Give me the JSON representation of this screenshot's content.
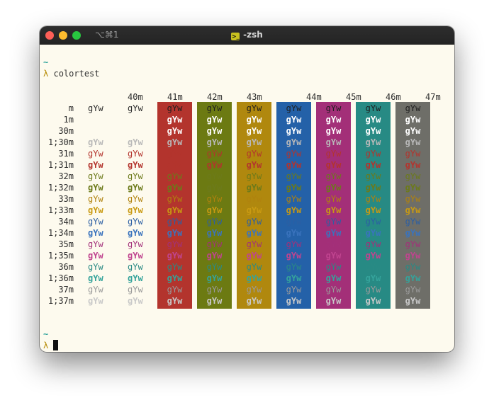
{
  "window": {
    "tab_shortcut": "⌥⌘1",
    "title": "-zsh",
    "title_icon": ">_"
  },
  "terminal": {
    "prompt_dir": "~",
    "prompt_symbol": "λ",
    "command": "colortest",
    "prompt2_dir": "~",
    "prompt2_symbol": "λ"
  },
  "colortest": {
    "sample": "gYw",
    "bg_headers": [
      "40m",
      "41m",
      "42m",
      "43m",
      "44m",
      "45m",
      "46m",
      "47m"
    ],
    "fg_labels": [
      "m",
      "1m",
      "30m",
      "1;30m",
      "31m",
      "1;31m",
      "32m",
      "1;32m",
      "33m",
      "1;33m",
      "34m",
      "1;34m",
      "35m",
      "1;35m",
      "36m",
      "1;36m",
      "37m",
      "1;37m"
    ],
    "fg_colors": {
      "default": "#2b2b2b",
      "bold_default": "#ffffff",
      "30": "#ffffff",
      "1;30": "#b9b9b9",
      "31": "#b3342d",
      "1;31": "#b3342d",
      "32": "#6c7a1a",
      "1;32": "#6c7a1a",
      "33": "#b0820e",
      "1;33": "#c99a12",
      "34": "#2c5fa3",
      "1;34": "#3a73bd",
      "35": "#a3307a",
      "1;35": "#c0448f",
      "36": "#2a8a84",
      "1;36": "#35a39b",
      "37": "#9a9a9a",
      "1;37": "#c9c9c9"
    },
    "bg_colors": {
      "40m": "#fdfaee",
      "41m": "#b3342d",
      "42m": "#6c7a12",
      "43m": "#b0880e",
      "44m": "#2461a8",
      "45m": "#a32f78",
      "46m": "#278a84",
      "47m": "#6e6e68"
    }
  },
  "colors": {
    "close": "#fe5f57",
    "minimize": "#febc2e",
    "zoom": "#28c840"
  }
}
